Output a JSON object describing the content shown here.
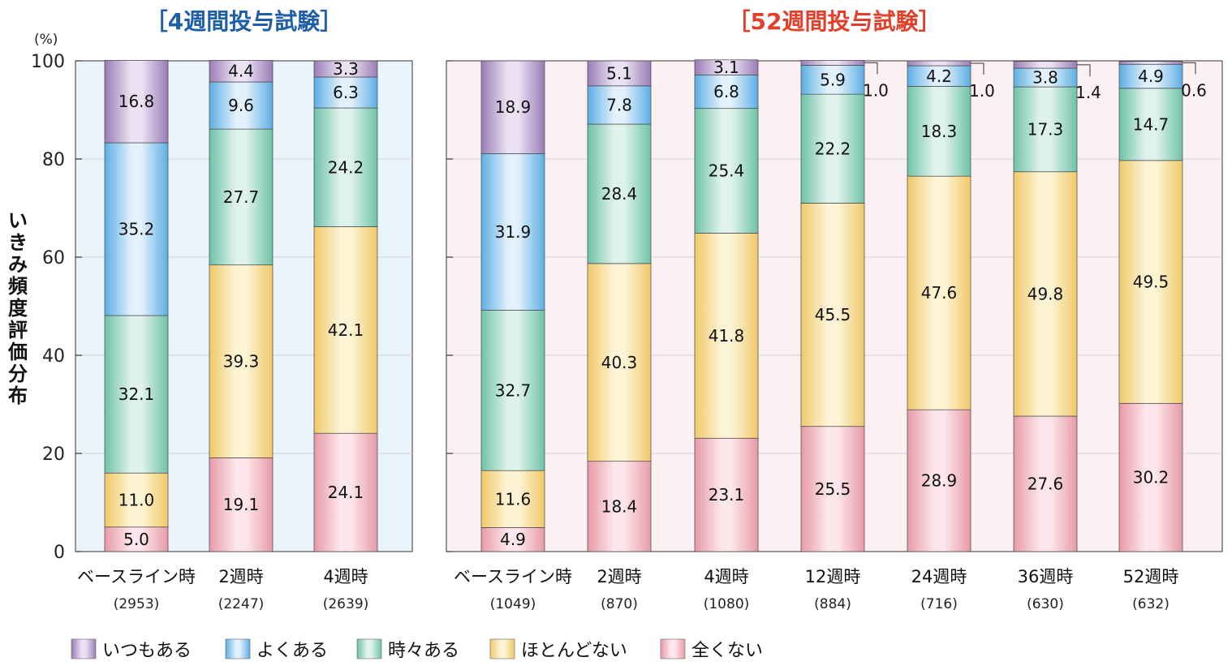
{
  "y_axis": {
    "unit": "(%)",
    "label": "いきみ頻度評価分布",
    "ticks": [
      "0",
      "20",
      "40",
      "60",
      "80",
      "100"
    ],
    "range": [
      0,
      100
    ]
  },
  "legend": [
    {
      "name": "いつもある",
      "color": "#a98bc0"
    },
    {
      "name": "よくある",
      "color": "#7fbde9"
    },
    {
      "name": "時々ある",
      "color": "#86cdb7"
    },
    {
      "name": "ほとんどない",
      "color": "#f6d98a"
    },
    {
      "name": "全くない",
      "color": "#f1a9b6"
    }
  ],
  "chart_data": [
    {
      "type": "bar",
      "stacked": true,
      "title": "［4週間投与試験］",
      "title_color": "#1f5fa8",
      "background": "#eaf4fd",
      "ylim": [
        0,
        100
      ],
      "categories": [
        "ベースライン時",
        "2週時",
        "4週時"
      ],
      "n_labels": [
        "(2953)",
        "(2247)",
        "(2639)"
      ],
      "series": [
        {
          "name": "全くない",
          "values": [
            5.0,
            19.1,
            24.1
          ]
        },
        {
          "name": "ほとんどない",
          "values": [
            11.0,
            39.3,
            42.1
          ]
        },
        {
          "name": "時々ある",
          "values": [
            32.1,
            27.7,
            24.2
          ]
        },
        {
          "name": "よくある",
          "values": [
            35.2,
            9.6,
            6.3
          ]
        },
        {
          "name": "いつもある",
          "values": [
            16.8,
            4.4,
            3.3
          ]
        }
      ]
    },
    {
      "type": "bar",
      "stacked": true,
      "title": "［52週間投与試験］",
      "title_color": "#e2402a",
      "background": "#fdf0f3",
      "ylim": [
        0,
        100
      ],
      "categories": [
        "ベースライン時",
        "2週時",
        "4週時",
        "12週時",
        "24週時",
        "36週時",
        "52週時"
      ],
      "n_labels": [
        "(1049)",
        "(870)",
        "(1080)",
        "(884)",
        "(716)",
        "(630)",
        "(632)"
      ],
      "series": [
        {
          "name": "全くない",
          "values": [
            4.9,
            18.4,
            23.1,
            25.5,
            28.9,
            27.6,
            30.2
          ]
        },
        {
          "name": "ほとんどない",
          "values": [
            11.6,
            40.3,
            41.8,
            45.5,
            47.6,
            49.8,
            49.5
          ]
        },
        {
          "name": "時々ある",
          "values": [
            32.7,
            28.4,
            25.4,
            22.2,
            18.3,
            17.3,
            14.7
          ]
        },
        {
          "name": "よくある",
          "values": [
            31.9,
            7.8,
            6.8,
            5.9,
            4.2,
            3.8,
            4.9
          ]
        },
        {
          "name": "いつもある",
          "values": [
            18.9,
            5.1,
            3.1,
            1.0,
            1.0,
            1.4,
            0.6
          ]
        }
      ]
    }
  ]
}
